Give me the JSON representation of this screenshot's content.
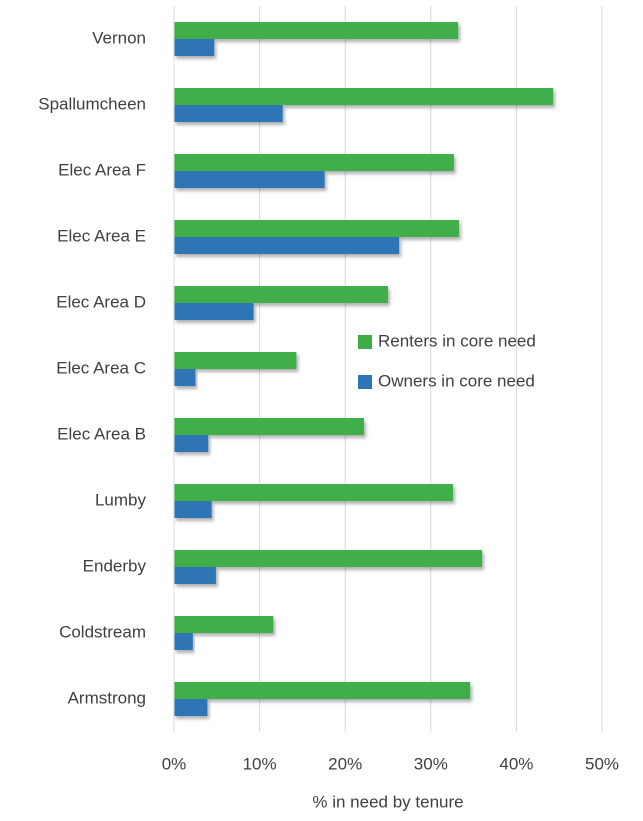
{
  "chart_data": {
    "type": "hbar",
    "xlabel": "% in need by tenure",
    "categories": [
      "Vernon",
      "Spallumcheen",
      "Elec Area F",
      "Elec Area E",
      "Elec Area D",
      "Elec Area C",
      "Elec Area B",
      "Lumby",
      "Enderby",
      "Coldstream",
      "Armstrong"
    ],
    "series": [
      {
        "name": "Renters in core need",
        "color": "#3fae49",
        "values": [
          33.2,
          44.3,
          32.7,
          33.3,
          25.0,
          14.3,
          22.2,
          32.6,
          36.0,
          11.6,
          34.6
        ]
      },
      {
        "name": "Owners in core need",
        "color": "#2e75b6",
        "values": [
          4.7,
          12.7,
          17.6,
          26.3,
          9.3,
          2.5,
          4.0,
          4.4,
          4.9,
          2.2,
          3.9
        ]
      }
    ],
    "xlim": [
      0,
      50
    ],
    "xticks": [
      {
        "value": 0,
        "label": "0%"
      },
      {
        "value": 10,
        "label": "10%"
      },
      {
        "value": 20,
        "label": "20%"
      },
      {
        "value": 30,
        "label": "30%"
      },
      {
        "value": 40,
        "label": "40%"
      },
      {
        "value": 50,
        "label": "50%"
      }
    ],
    "grid": true,
    "legend": "right"
  }
}
